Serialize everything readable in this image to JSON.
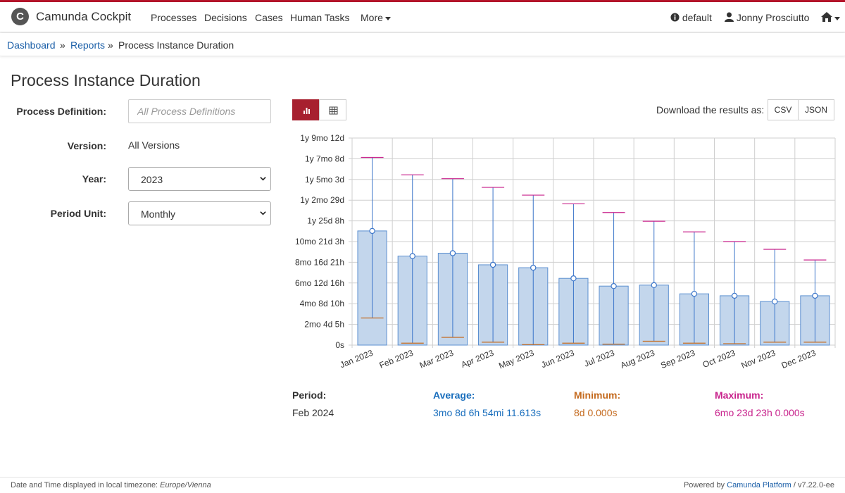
{
  "app": {
    "title": "Camunda Cockpit",
    "logo_letter": "C"
  },
  "nav": {
    "items": [
      "Processes",
      "Decisions",
      "Cases",
      "Human Tasks"
    ],
    "more": "More",
    "engine": "default",
    "user": "Jonny Prosciutto"
  },
  "breadcrumb": {
    "dashboard": "Dashboard",
    "separator": "»",
    "reports": "Reports",
    "current": "Process Instance Duration"
  },
  "page_title": "Process Instance Duration",
  "form": {
    "process_definition_label": "Process Definition:",
    "process_definition_placeholder": "All Process Definitions",
    "version_label": "Version:",
    "version_value": "All Versions",
    "year_label": "Year:",
    "year_value": "2023",
    "period_unit_label": "Period Unit:",
    "period_unit_value": "Monthly"
  },
  "toolbar": {
    "chart_view_icon": "bar-chart-icon",
    "table_view_icon": "table-icon",
    "download_label": "Download the results as:",
    "csv": "CSV",
    "json": "JSON"
  },
  "chart_data": {
    "type": "bar",
    "ylabel": "",
    "xlabel": "",
    "y_ticks": [
      "0s",
      "2mo 4d 5h",
      "4mo 8d 10h",
      "6mo 12d 16h",
      "8mo 16d 21h",
      "10mo 21d 3h",
      "1y 25d 8h",
      "1y 2mo 29d",
      "1y 5mo 3d",
      "1y 7mo 8d",
      "1y 9mo 12d"
    ],
    "y_unit": "months",
    "ylim": [
      0,
      21.4
    ],
    "categories": [
      "Jan 2023",
      "Feb 2023",
      "Mar 2023",
      "Apr 2023",
      "May 2023",
      "Jun 2023",
      "Jul 2023",
      "Aug 2023",
      "Sep 2023",
      "Oct 2023",
      "Nov 2023",
      "Dec 2023"
    ],
    "series": [
      {
        "name": "Average",
        "values": [
          11.8,
          9.2,
          9.5,
          8.3,
          8.0,
          6.9,
          6.1,
          6.2,
          5.3,
          5.1,
          4.5,
          5.1
        ]
      },
      {
        "name": "Minimum",
        "values": [
          2.8,
          0.2,
          0.8,
          0.3,
          0.05,
          0.2,
          0.1,
          0.4,
          0.2,
          0.15,
          0.3,
          0.3
        ]
      },
      {
        "name": "Maximum",
        "values": [
          19.4,
          17.6,
          17.2,
          16.3,
          15.5,
          14.6,
          13.7,
          12.8,
          11.7,
          10.7,
          9.9,
          8.8
        ]
      }
    ],
    "colors": {
      "bar_fill": "#c3d6ec",
      "bar_stroke": "#5b8fd0",
      "whisker": "#3b75c9",
      "min": "#c46a1e",
      "max": "#c8238c",
      "grid": "#cfcfcf"
    }
  },
  "summary": {
    "period_label": "Period:",
    "period_value": "Feb 2024",
    "average_label": "Average:",
    "average_value": "3mo 8d 6h 54mi 11.613s",
    "minimum_label": "Minimum:",
    "minimum_value": "8d 0.000s",
    "maximum_label": "Maximum:",
    "maximum_value": "6mo 23d 23h 0.000s",
    "colors": {
      "average": "#1b6fbd",
      "minimum": "#c46a1e",
      "maximum": "#c8238c",
      "period": "#333333"
    }
  },
  "footer": {
    "timezone_prefix": "Date and Time displayed in local timezone: ",
    "timezone": "Europe/Vienna",
    "powered_prefix": "Powered by ",
    "powered_link": "Camunda Platform",
    "version": " / v7.22.0-ee"
  }
}
